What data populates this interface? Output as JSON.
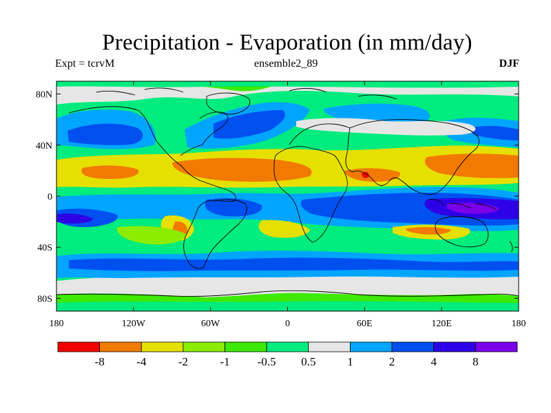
{
  "title": "Precipitation - Evaporation (in mm/day)",
  "subtitle": {
    "left": "Expt = tcrvM",
    "center": "ensemble2_89",
    "right": "DJF"
  },
  "axes": {
    "latitude_labels": [
      "80N",
      "40N",
      "0",
      "40S",
      "80S"
    ],
    "latitude_values": [
      80,
      40,
      0,
      -40,
      -80
    ],
    "longitude_labels": [
      "180",
      "120W",
      "60W",
      "0",
      "60E",
      "120E",
      "180"
    ],
    "longitude_values": [
      -180,
      -120,
      -60,
      0,
      60,
      120,
      180
    ],
    "lat_range": [
      -90,
      90
    ],
    "lon_range": [
      -180,
      180
    ]
  },
  "colorbar": {
    "colors": [
      "#f20000",
      "#f27a00",
      "#e5e000",
      "#8cec00",
      "#3dea00",
      "#00ec7e",
      "#e6e6e6",
      "#00a5ff",
      "#0050f0",
      "#2e00e6",
      "#7a00ea"
    ],
    "labels": [
      "-8",
      "-4",
      "-2",
      "-1",
      "-0.5",
      "0.5",
      "1",
      "2",
      "4",
      "8"
    ]
  },
  "palette": {
    "background": "#00ec7e"
  }
}
